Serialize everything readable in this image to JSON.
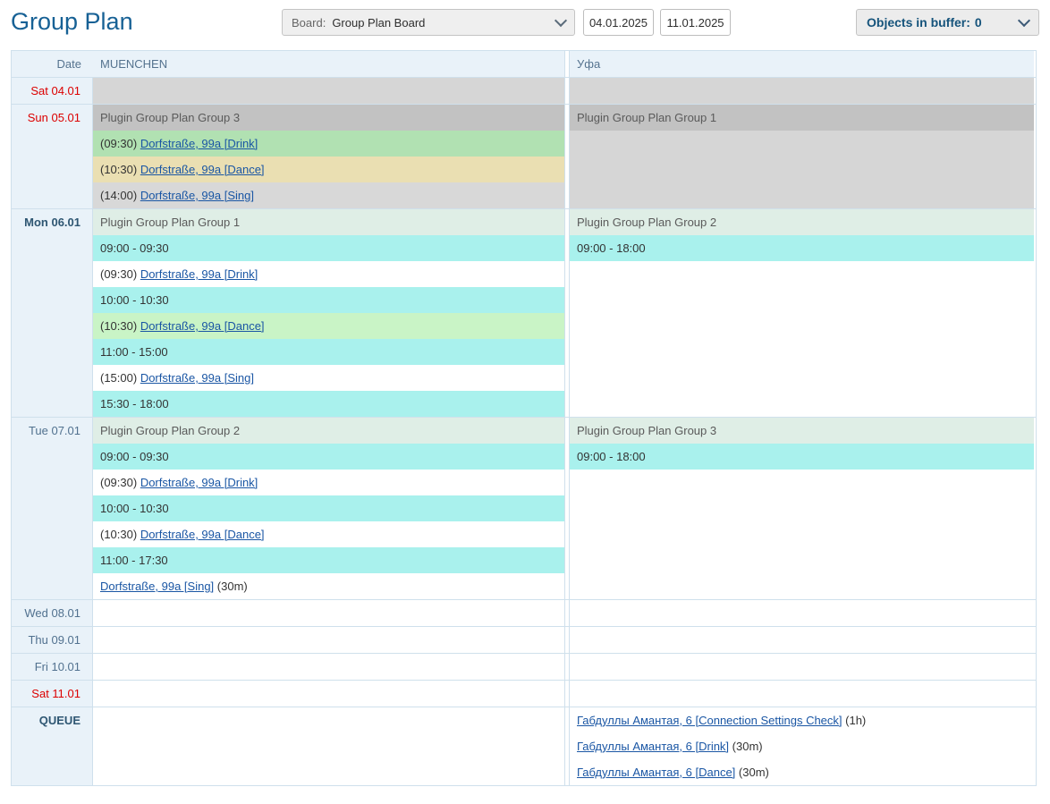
{
  "title": "Group Plan",
  "toolbar": {
    "board_label": "Board:",
    "board_value": "Group Plan Board",
    "date_from": "04.01.2025",
    "date_to": "11.01.2025",
    "buffer_label": "Objects in buffer:",
    "buffer_count": "0"
  },
  "colors": {
    "accent_blue": "#176195",
    "header_bg": "#e9f2f9",
    "border": "#cfe0ec",
    "weekend_red": "#dc0000",
    "day_text": "#51718f",
    "bold_day_text": "#2e5672",
    "buffer_text_color": "#15537b",
    "link_blue": "#1a56a4",
    "cyan_free": "#a9f1ed",
    "gray_group": "#c2c2c2",
    "gray_block": "#d6d6d6",
    "pale_green_group": "#dfeee6",
    "green_appt": "#b1e1b2",
    "tan_appt": "#eadfb2",
    "gray_appt": "#d8d8d8",
    "light_green_appt": "#c9f4c6"
  },
  "table": {
    "header": {
      "date": "Date",
      "muenchen": "MUENCHEN",
      "ufa": "Уфа"
    },
    "rows": [
      {
        "date": "Sat 04.01",
        "style": "weekend",
        "muenchen": [
          {
            "type": "fill",
            "cls": "bg-grayblock",
            "span": 1
          }
        ],
        "ufa": [
          {
            "type": "fill",
            "cls": "bg-grayblock",
            "span": 1
          }
        ]
      },
      {
        "date": "Sun 05.01",
        "style": "weekend",
        "muenchen": [
          {
            "type": "group",
            "text": "Plugin Group Plan Group 3",
            "cls": "bg-graygroup"
          },
          {
            "type": "appt",
            "prefix": "(09:30) ",
            "link": "Dorfstraße, 99a [Drink]",
            "suffix": "",
            "cls": "bg-green"
          },
          {
            "type": "appt",
            "prefix": "(10:30) ",
            "link": "Dorfstraße, 99a [Dance]",
            "suffix": "",
            "cls": "bg-tan"
          },
          {
            "type": "appt",
            "prefix": "(14:00) ",
            "link": "Dorfstraße, 99a [Sing]",
            "suffix": "",
            "cls": "bg-grayappt"
          }
        ],
        "ufa": [
          {
            "type": "group",
            "text": "Plugin Group Plan Group 1",
            "cls": "bg-graygroup"
          },
          {
            "type": "fill",
            "cls": "bg-grayblock",
            "span": 3
          }
        ]
      },
      {
        "date": "Mon 06.01",
        "style": "today",
        "muenchen": [
          {
            "type": "group",
            "text": "Plugin Group Plan Group 1",
            "cls": "bg-palegreen"
          },
          {
            "type": "free",
            "text": "09:00 - 09:30",
            "cls": "bg-cyan"
          },
          {
            "type": "appt",
            "prefix": "(09:30) ",
            "link": "Dorfstraße, 99a [Drink]",
            "suffix": "",
            "cls": "bg-white"
          },
          {
            "type": "free",
            "text": "10:00 - 10:30",
            "cls": "bg-cyan"
          },
          {
            "type": "appt",
            "prefix": "(10:30) ",
            "link": "Dorfstraße, 99a [Dance]",
            "suffix": "",
            "cls": "bg-lightgreen"
          },
          {
            "type": "free",
            "text": "11:00 - 15:00",
            "cls": "bg-cyan"
          },
          {
            "type": "appt",
            "prefix": "(15:00) ",
            "link": "Dorfstraße, 99a [Sing]",
            "suffix": "",
            "cls": "bg-white"
          },
          {
            "type": "free",
            "text": "15:30 - 18:00",
            "cls": "bg-cyan"
          }
        ],
        "ufa": [
          {
            "type": "group",
            "text": "Plugin Group Plan Group 2",
            "cls": "bg-palegreen"
          },
          {
            "type": "free",
            "text": "09:00 - 18:00",
            "cls": "bg-cyan"
          },
          {
            "type": "fill",
            "cls": "bg-white",
            "span": 6
          }
        ]
      },
      {
        "date": "Tue 07.01",
        "style": "normal",
        "muenchen": [
          {
            "type": "group",
            "text": "Plugin Group Plan Group 2",
            "cls": "bg-palegreen"
          },
          {
            "type": "free",
            "text": "09:00 - 09:30",
            "cls": "bg-cyan"
          },
          {
            "type": "appt",
            "prefix": "(09:30) ",
            "link": "Dorfstraße, 99a [Drink]",
            "suffix": "",
            "cls": "bg-white"
          },
          {
            "type": "free",
            "text": "10:00 - 10:30",
            "cls": "bg-cyan"
          },
          {
            "type": "appt",
            "prefix": "(10:30) ",
            "link": "Dorfstraße, 99a [Dance]",
            "suffix": "",
            "cls": "bg-white"
          },
          {
            "type": "free",
            "text": "11:00 - 17:30",
            "cls": "bg-cyan"
          },
          {
            "type": "appt",
            "prefix": "",
            "link": "Dorfstraße, 99a [Sing]",
            "suffix": " (30m)",
            "cls": "bg-white"
          }
        ],
        "ufa": [
          {
            "type": "group",
            "text": "Plugin Group Plan Group 3",
            "cls": "bg-palegreen"
          },
          {
            "type": "free",
            "text": "09:00 - 18:00",
            "cls": "bg-cyan"
          },
          {
            "type": "fill",
            "cls": "bg-white",
            "span": 5
          }
        ]
      },
      {
        "date": "Wed 08.01",
        "style": "normal",
        "muenchen": [
          {
            "type": "fill",
            "cls": "bg-white",
            "span": 1
          }
        ],
        "ufa": [
          {
            "type": "fill",
            "cls": "bg-white",
            "span": 1
          }
        ]
      },
      {
        "date": "Thu 09.01",
        "style": "normal",
        "muenchen": [
          {
            "type": "fill",
            "cls": "bg-white",
            "span": 1
          }
        ],
        "ufa": [
          {
            "type": "fill",
            "cls": "bg-white",
            "span": 1
          }
        ]
      },
      {
        "date": "Fri 10.01",
        "style": "normal",
        "muenchen": [
          {
            "type": "fill",
            "cls": "bg-white",
            "span": 1
          }
        ],
        "ufa": [
          {
            "type": "fill",
            "cls": "bg-white",
            "span": 1
          }
        ]
      },
      {
        "date": "Sat 11.01",
        "style": "weekend",
        "muenchen": [
          {
            "type": "fill",
            "cls": "bg-white",
            "span": 1
          }
        ],
        "ufa": [
          {
            "type": "fill",
            "cls": "bg-white",
            "span": 1
          }
        ]
      },
      {
        "date": "QUEUE",
        "style": "queue",
        "muenchen": [
          {
            "type": "fill",
            "cls": "bg-white",
            "span": 3
          }
        ],
        "ufa": [
          {
            "type": "appt",
            "prefix": "",
            "link": "Габдуллы Амантая, 6 [Connection Settings Check]",
            "suffix": " (1h)",
            "cls": "bg-white"
          },
          {
            "type": "appt",
            "prefix": "",
            "link": "Габдуллы Амантая, 6 [Drink]",
            "suffix": " (30m)",
            "cls": "bg-white"
          },
          {
            "type": "appt",
            "prefix": "",
            "link": "Габдуллы Амантая, 6 [Dance]",
            "suffix": " (30m)",
            "cls": "bg-white"
          }
        ]
      }
    ]
  }
}
